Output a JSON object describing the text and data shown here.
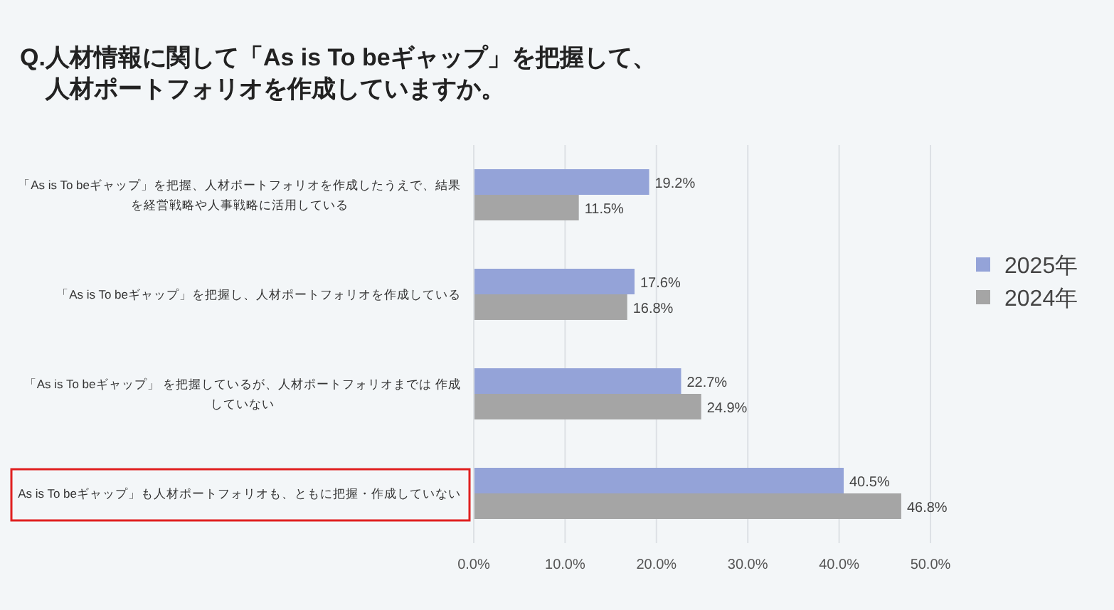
{
  "chart_data": {
    "type": "bar",
    "orientation": "horizontal",
    "title": "Q.人材情報に関して「As is To beギャップ」を把握して、人材ポートフォリオを作成していますか。",
    "categories": [
      "「As is To beギャップ」を把握、人材ポートフォリオを作成したうえで、結果を経営戦略や人事戦略に活用している",
      "「As is To beギャップ」を把握し、人材ポートフォリオを作成している",
      "「As is To beギャップ」 を把握しているが、人材ポートフォリオまでは 作成していない",
      "As is To beギャップ」も人材ポートフォリオも、ともに把握・作成していない"
    ],
    "series": [
      {
        "name": "2025年",
        "color": "#94a3d8",
        "values": [
          19.2,
          17.6,
          22.7,
          40.5
        ],
        "value_labels": [
          "19.2%",
          "17.6%",
          "22.7%",
          "40.5%"
        ]
      },
      {
        "name": "2024年",
        "color": "#a5a5a5",
        "values": [
          11.5,
          16.8,
          24.9,
          46.8
        ],
        "value_labels": [
          "11.5%",
          "16.8%",
          "24.9%",
          "46.8%"
        ]
      }
    ],
    "xlim": [
      0,
      50
    ],
    "xticks": [
      {
        "value": 0,
        "label": "0.0%"
      },
      {
        "value": 10,
        "label": "10.0%"
      },
      {
        "value": 20,
        "label": "20.0%"
      },
      {
        "value": 30,
        "label": "30.0%"
      },
      {
        "value": 40,
        "label": "40.0%"
      },
      {
        "value": 50,
        "label": "50.0%"
      }
    ],
    "grid": "x",
    "legend": "right"
  }
}
